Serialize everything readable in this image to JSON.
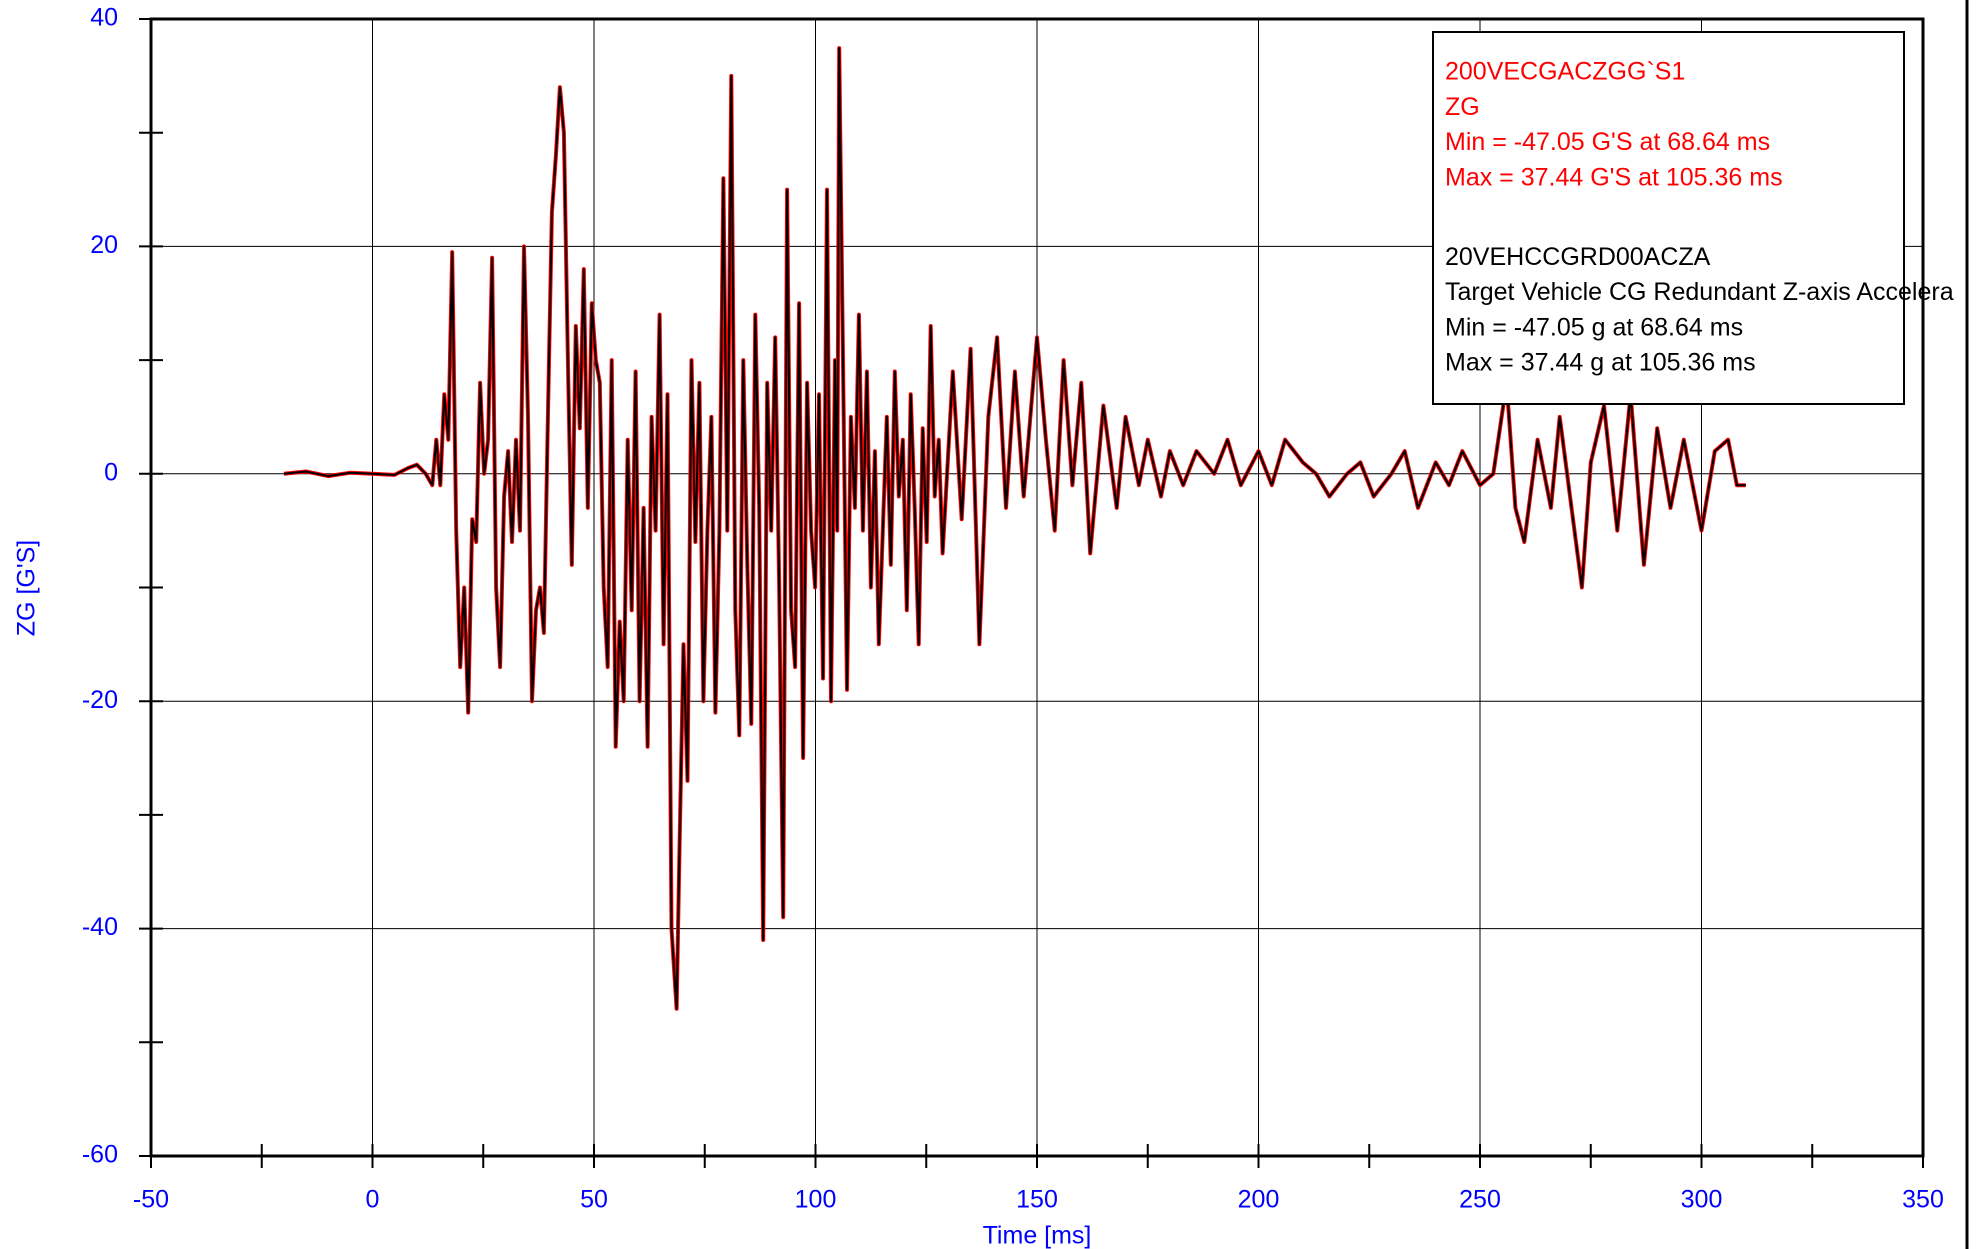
{
  "chart_data": {
    "type": "line",
    "xlabel": "Time [ms]",
    "ylabel": "ZG  [G'S]",
    "xlim": [
      -50,
      350
    ],
    "xticks": [
      -50,
      0,
      50,
      100,
      150,
      200,
      250,
      300,
      350
    ],
    "xminorticks": [
      -25,
      25,
      75,
      125,
      175,
      225,
      275,
      325
    ],
    "ylim": [
      -60,
      40
    ],
    "yticks": [
      -60,
      -40,
      -20,
      0,
      20,
      40
    ],
    "yminorticks": [
      -50,
      -30,
      -10,
      10,
      30
    ],
    "grid": true,
    "legend": {
      "position": "upper right",
      "entries": [
        {
          "color": "#ff0000",
          "lines": [
            "200VECGACZGG`S1",
            "ZG",
            "Min = -47.05 G'S at 68.64 ms",
            "Max = 37.44 G'S at 105.36 ms"
          ]
        },
        {
          "color": "#000000",
          "lines": [
            "20VEHCCGRD00ACZA",
            "Target Vehicle CG Redundant Z-axis Accelera",
            "Min = -47.05 g at 68.64 ms",
            "Max = 37.44 g at 105.36 ms"
          ]
        }
      ]
    },
    "x": [
      -20,
      -15,
      -10,
      -5,
      0,
      5,
      8,
      10,
      12,
      13.5,
      14.4,
      15.3,
      16.2,
      17.1,
      18,
      18.9,
      19.8,
      20.7,
      21.6,
      22.5,
      23.4,
      24.3,
      25.2,
      26.1,
      27,
      27.9,
      28.8,
      29.7,
      30.6,
      31.5,
      32.4,
      33.3,
      34.2,
      35.1,
      36,
      36.9,
      37.8,
      38.7,
      39.6,
      40.5,
      41.4,
      42.3,
      43.2,
      44.1,
      45,
      45.9,
      46.8,
      47.7,
      48.6,
      49.5,
      50.4,
      51.3,
      52.2,
      53.1,
      54,
      54.9,
      55.8,
      56.7,
      57.6,
      58.5,
      59.4,
      60.3,
      61.2,
      62.1,
      63,
      63.9,
      64.8,
      65.7,
      66.6,
      67.5,
      68.64,
      69.3,
      70.2,
      71.1,
      72,
      72.9,
      73.8,
      74.7,
      75.6,
      76.5,
      77.4,
      78.3,
      79.2,
      80.1,
      81,
      81.9,
      82.8,
      83.7,
      84.6,
      85.5,
      86.4,
      87.3,
      88.2,
      89.1,
      90,
      90.9,
      91.8,
      92.7,
      93.6,
      94.5,
      95.4,
      96.3,
      97.2,
      98.1,
      99,
      99.9,
      100.8,
      101.7,
      102.6,
      103.5,
      104.4,
      104.9,
      105.36,
      107.1,
      108,
      108.9,
      109.8,
      110.7,
      111.6,
      112.5,
      113.4,
      114.3,
      115.2,
      116.1,
      117,
      117.9,
      118.8,
      119.7,
      120.6,
      121.5,
      122.4,
      123.3,
      124.2,
      125.1,
      126,
      126.9,
      127.8,
      128.7,
      131,
      133,
      135,
      137,
      139,
      141,
      143,
      145,
      147,
      150,
      152,
      154,
      156,
      158,
      160,
      162,
      165,
      168,
      170,
      173,
      175,
      178,
      180,
      183,
      186,
      190,
      193,
      196,
      200,
      203,
      206,
      210,
      213,
      216,
      220,
      223,
      226,
      230,
      233,
      236,
      240,
      243,
      246,
      250,
      253,
      256,
      258,
      260,
      263,
      266,
      268,
      271,
      273,
      275,
      278,
      281,
      284,
      287,
      290,
      293,
      296,
      300,
      303,
      306,
      308,
      310
    ],
    "series": [
      {
        "name": "200VECGACZGG`S1",
        "color": "#ff0000",
        "values": [
          0,
          0.2,
          -0.2,
          0.1,
          0,
          -0.1,
          0.5,
          0.8,
          0,
          -1,
          3,
          -1,
          7,
          3,
          19.5,
          -5,
          -17,
          -10,
          -21,
          -4,
          -6,
          8,
          0,
          3,
          19,
          -10,
          -17,
          -2,
          2,
          -6,
          3,
          -5,
          20,
          5,
          -20,
          -12,
          -10,
          -14,
          5,
          23,
          28,
          34,
          30,
          10,
          -8,
          13,
          4,
          18,
          -3,
          15,
          10,
          8,
          -10,
          -17,
          10,
          -24,
          -13,
          -20,
          3,
          -12,
          9,
          -20,
          -3,
          -24,
          5,
          -5,
          14,
          -15,
          7,
          -40,
          -47.05,
          -33,
          -15,
          -27,
          10,
          -6,
          8,
          -20,
          -5,
          5,
          -21,
          -5,
          26,
          -5,
          35,
          -12,
          -23,
          10,
          -8,
          -22,
          14,
          -3,
          -41,
          8,
          -5,
          12,
          -10,
          -39,
          25,
          -12,
          -17,
          15,
          -25,
          8,
          -5,
          -10,
          7,
          -18,
          25,
          -20,
          10,
          -5,
          37.44,
          -19,
          5,
          -3,
          14,
          -5,
          9,
          -10,
          2,
          -15,
          -5,
          5,
          -8,
          9,
          -2,
          3,
          -12,
          7,
          -3,
          -15,
          4,
          -6,
          13,
          -2,
          3,
          -7,
          9,
          -4,
          11,
          -15,
          5,
          12,
          -3,
          9,
          -2,
          12,
          3,
          -5,
          10,
          -1,
          8,
          -7,
          6,
          -3,
          5,
          -1,
          3,
          -2,
          2,
          -1,
          2,
          0,
          3,
          -1,
          2,
          -1,
          3,
          1,
          0,
          -2,
          0,
          1,
          -2,
          0,
          2,
          -3,
          1,
          -1,
          2,
          -1,
          0,
          8,
          -3,
          -6,
          3,
          -3,
          5,
          -4,
          -10,
          1,
          6,
          -5,
          7,
          -8,
          4,
          -3,
          3,
          -5,
          2,
          3,
          -1,
          -1
        ]
      },
      {
        "name": "20VEHCCGRD00ACZA",
        "color": "#000000",
        "values": [
          0,
          0.2,
          -0.2,
          0.1,
          0,
          -0.1,
          0.5,
          0.8,
          0,
          -1,
          3,
          -1,
          7,
          3,
          19.5,
          -5,
          -17,
          -10,
          -21,
          -4,
          -6,
          8,
          0,
          3,
          19,
          -10,
          -17,
          -2,
          2,
          -6,
          3,
          -5,
          20,
          5,
          -20,
          -12,
          -10,
          -14,
          5,
          23,
          28,
          34,
          30,
          10,
          -8,
          13,
          4,
          18,
          -3,
          15,
          10,
          8,
          -10,
          -17,
          10,
          -24,
          -13,
          -20,
          3,
          -12,
          9,
          -20,
          -3,
          -24,
          5,
          -5,
          14,
          -15,
          7,
          -40,
          -47.05,
          -33,
          -15,
          -27,
          10,
          -6,
          8,
          -20,
          -5,
          5,
          -21,
          -5,
          26,
          -5,
          35,
          -12,
          -23,
          10,
          -8,
          -22,
          14,
          -3,
          -41,
          8,
          -5,
          12,
          -10,
          -39,
          25,
          -12,
          -17,
          15,
          -25,
          8,
          -5,
          -10,
          7,
          -18,
          25,
          -20,
          10,
          -5,
          37.44,
          -19,
          5,
          -3,
          14,
          -5,
          9,
          -10,
          2,
          -15,
          -5,
          5,
          -8,
          9,
          -2,
          3,
          -12,
          7,
          -3,
          -15,
          4,
          -6,
          13,
          -2,
          3,
          -7,
          9,
          -4,
          11,
          -15,
          5,
          12,
          -3,
          9,
          -2,
          12,
          3,
          -5,
          10,
          -1,
          8,
          -7,
          6,
          -3,
          5,
          -1,
          3,
          -2,
          2,
          -1,
          2,
          0,
          3,
          -1,
          2,
          -1,
          3,
          1,
          0,
          -2,
          0,
          1,
          -2,
          0,
          2,
          -3,
          1,
          -1,
          2,
          -1,
          0,
          8,
          -3,
          -6,
          3,
          -3,
          5,
          -4,
          -10,
          1,
          6,
          -5,
          7,
          -8,
          4,
          -3,
          3,
          -5,
          2,
          3,
          -1,
          -1
        ]
      }
    ]
  }
}
